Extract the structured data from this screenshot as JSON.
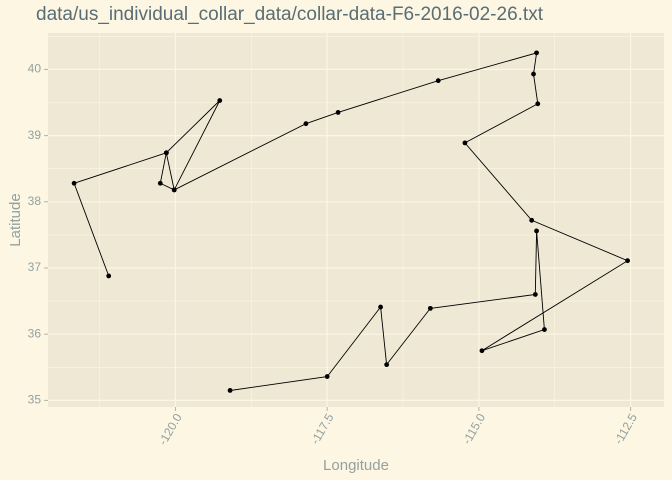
{
  "chart_data": {
    "type": "line",
    "title": "data/us_individual_collar_data/collar-data-F6-2016-02-26.txt",
    "xlabel": "Longitude",
    "ylabel": "Latitude",
    "xlim": [
      -122.1,
      -111.95
    ],
    "ylim": [
      34.9,
      40.55
    ],
    "x_ticks": [
      -120.0,
      -117.5,
      -115.0,
      -112.5
    ],
    "x_tick_labels": [
      "-120.0",
      "-117.5",
      "-115.0",
      "-112.5"
    ],
    "y_ticks": [
      35,
      36,
      37,
      38,
      39,
      40
    ],
    "y_tick_labels": [
      "35",
      "36",
      "37",
      "38",
      "39",
      "40"
    ],
    "grid": true,
    "points": [
      {
        "x": -121.1,
        "y": 36.88
      },
      {
        "x": -121.67,
        "y": 38.28
      },
      {
        "x": -120.15,
        "y": 38.74
      },
      {
        "x": -120.25,
        "y": 38.28
      },
      {
        "x": -120.02,
        "y": 38.18
      },
      {
        "x": -119.27,
        "y": 39.53
      },
      {
        "x": -120.15,
        "y": 38.74
      },
      {
        "x": -120.02,
        "y": 38.18
      },
      {
        "x": -117.85,
        "y": 39.18
      },
      {
        "x": -117.32,
        "y": 39.35
      },
      {
        "x": -115.67,
        "y": 39.83
      },
      {
        "x": -114.05,
        "y": 40.25
      },
      {
        "x": -114.1,
        "y": 39.93
      },
      {
        "x": -114.03,
        "y": 39.48
      },
      {
        "x": -115.23,
        "y": 38.89
      },
      {
        "x": -114.13,
        "y": 37.72
      },
      {
        "x": -112.55,
        "y": 37.11
      },
      {
        "x": -114.95,
        "y": 35.75
      },
      {
        "x": -113.92,
        "y": 36.07
      },
      {
        "x": -114.05,
        "y": 37.56
      },
      {
        "x": -114.07,
        "y": 36.6
      },
      {
        "x": -115.8,
        "y": 36.39
      },
      {
        "x": -116.52,
        "y": 35.54
      },
      {
        "x": -116.62,
        "y": 36.41
      },
      {
        "x": -117.5,
        "y": 35.36
      },
      {
        "x": -119.1,
        "y": 35.15
      }
    ]
  },
  "colors": {
    "page_background": "#fdf6e3",
    "panel_background": "#eee8d5",
    "grid": "#fdf6e3",
    "line": "#000000",
    "point": "#000000",
    "title": "#586e75",
    "axis_text": "#93a1a1"
  }
}
